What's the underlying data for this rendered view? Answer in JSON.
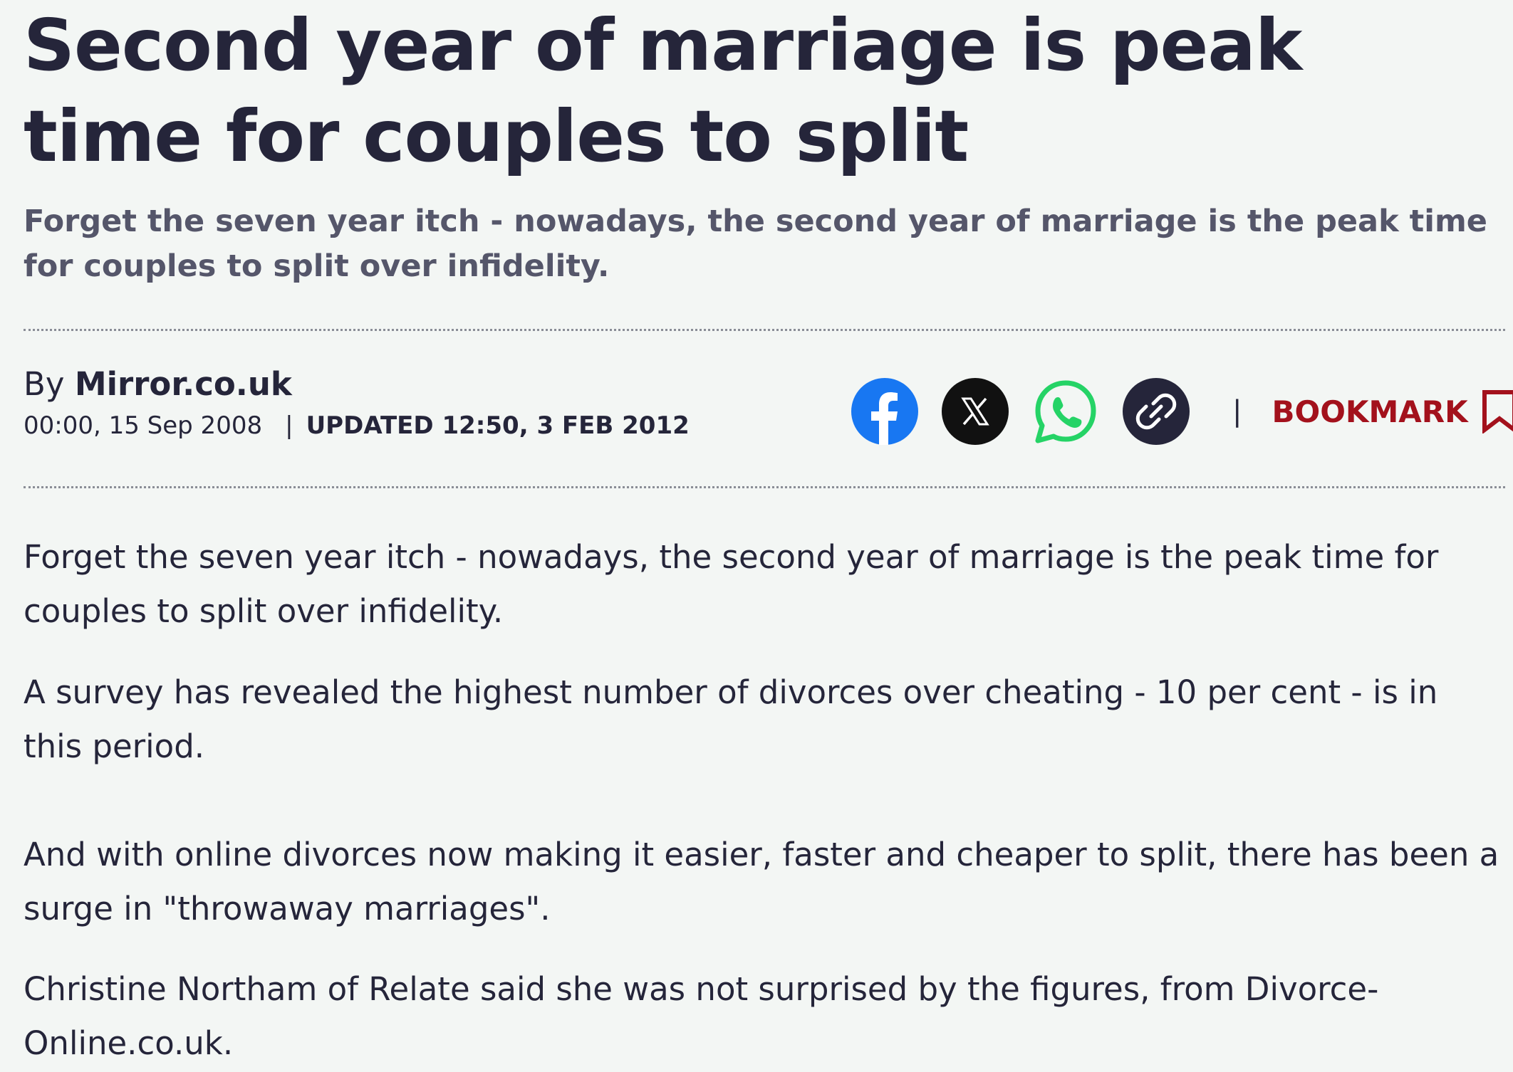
{
  "article": {
    "headline": "Second year of marriage is peak time for couples to split",
    "standfirst": "Forget the seven year itch - nowadays, the second year of marriage is the peak time for couples to split over infidelity.",
    "byline_prefix": "By",
    "author": "Mirror.co.uk",
    "published": "00:00, 15 Sep 2008",
    "separator": "|",
    "updated": "UPDATED 12:50, 3 FEB 2012",
    "paragraphs": [
      "Forget the seven year itch - nowadays, the second year of marriage is the peak time for couples to split over infidelity.",
      "A survey has revealed the highest number of divorces over cheating - 10 per cent - is in this period.",
      "And with online divorces now making it easier, faster and cheaper to split, there has been a surge in \"throwaway marriages\".",
      "Christine Northam of Relate said she was not surprised by the figures, from Divorce-Online.co.uk."
    ]
  },
  "share": {
    "icons": [
      "facebook-icon",
      "x-icon",
      "whatsapp-icon",
      "link-icon"
    ],
    "colors": {
      "facebook": "#1877f2",
      "x": "#111111",
      "whatsapp": "#25d366",
      "link": "#25253a"
    }
  },
  "bookmark": {
    "pipe": "|",
    "label": "BOOKMARK",
    "icon": "bookmark-icon",
    "color": "#a3111c"
  }
}
